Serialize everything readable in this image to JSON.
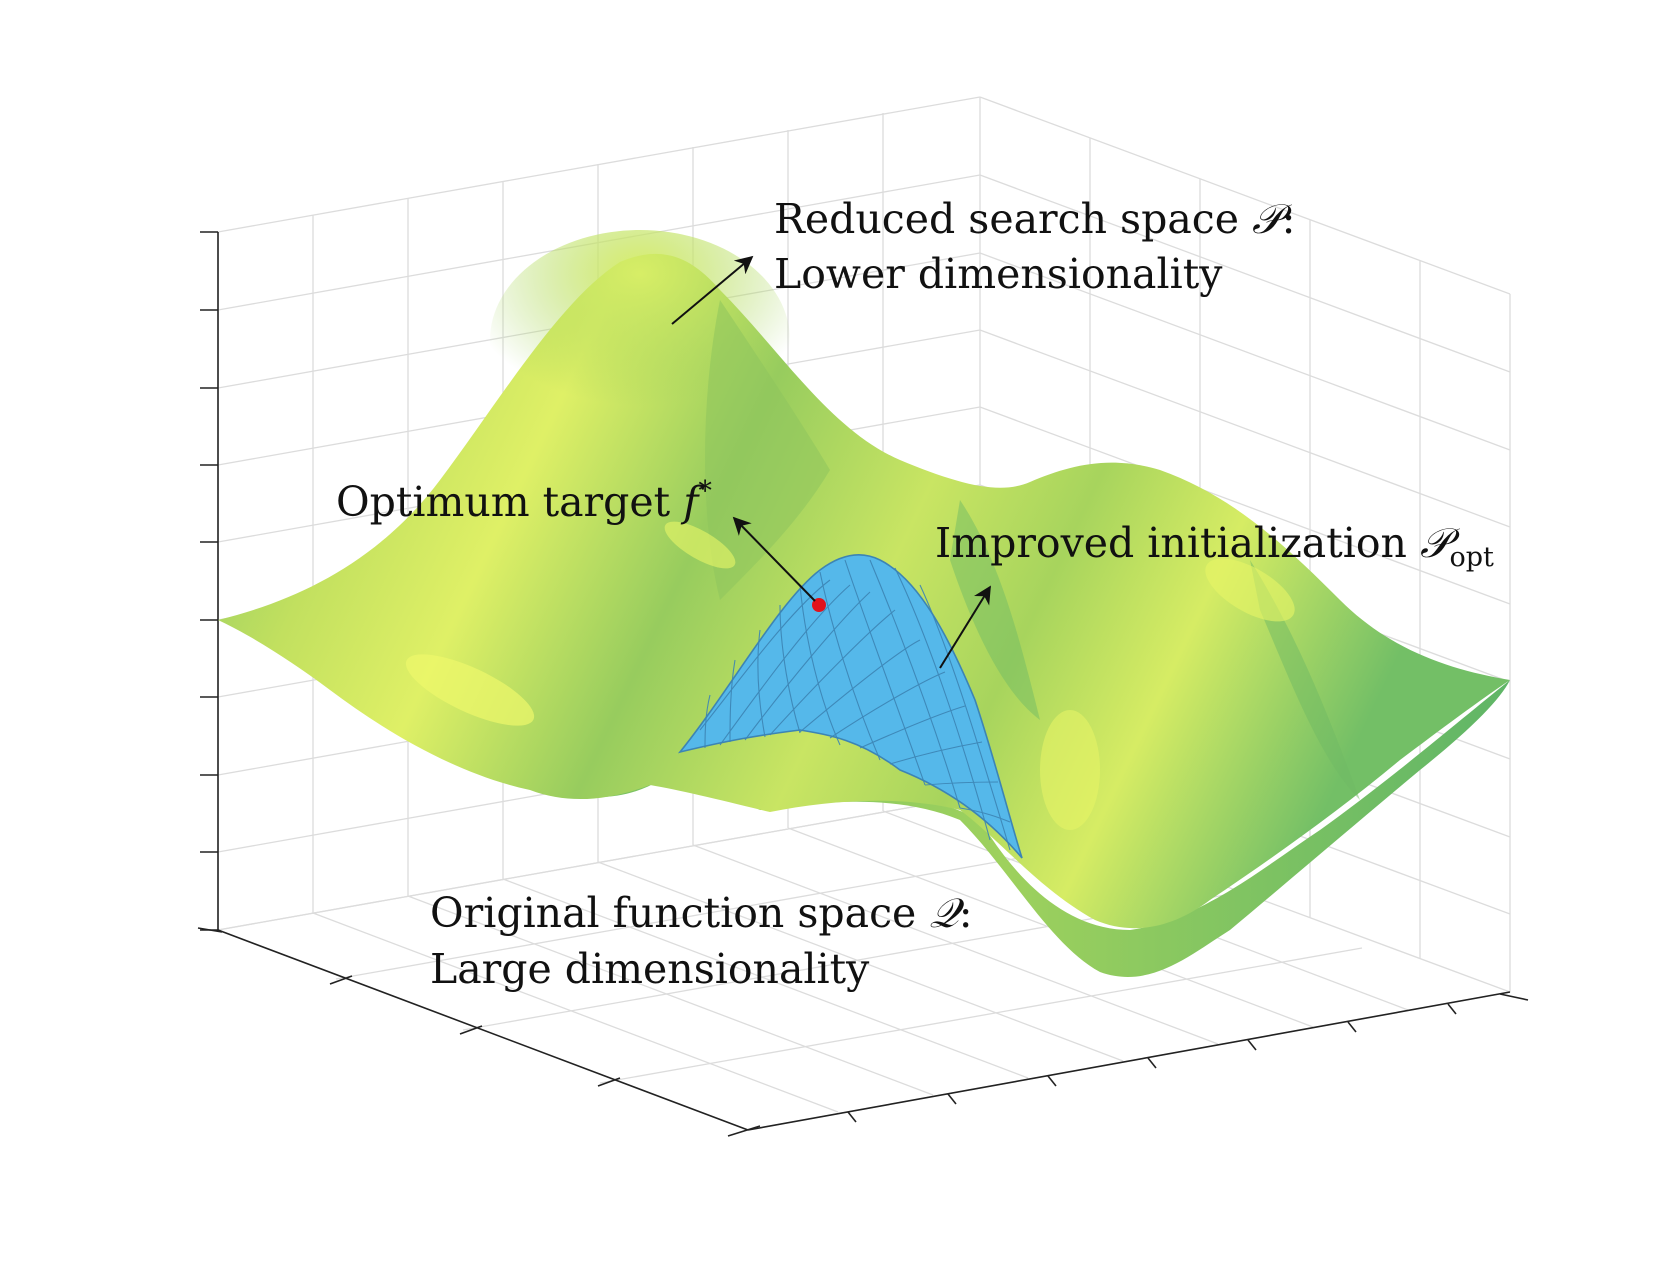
{
  "figure": {
    "colors": {
      "surface_dark": "#5fb567",
      "surface_mid": "#a9d45a",
      "surface_light": "#e2f266",
      "patch_fill": "#55b8ea",
      "patch_mesh": "#3c84b4",
      "optimum_point": "#e1121b",
      "grid": "#d9d9d9",
      "axis": "#222222",
      "text": "#111111"
    },
    "annotations": {
      "reduced": {
        "line1_text": "Reduced search space ",
        "line1_symbol": "𝒫",
        "line1_suffix": ":",
        "line2": "Lower dimensionality"
      },
      "optimum": {
        "text": "Optimum target ",
        "symbol": "f",
        "superscript": "*"
      },
      "improved": {
        "text": "Improved initialization ",
        "symbol": "𝒫",
        "subscript": "opt"
      },
      "original": {
        "line1_text": "Original function space ",
        "line1_symbol": "𝒬",
        "line1_suffix": ":",
        "line2": "Large dimensionality"
      }
    },
    "icons": {
      "optimum_marker": "red-dot",
      "arrows": "arrow-icon"
    }
  }
}
